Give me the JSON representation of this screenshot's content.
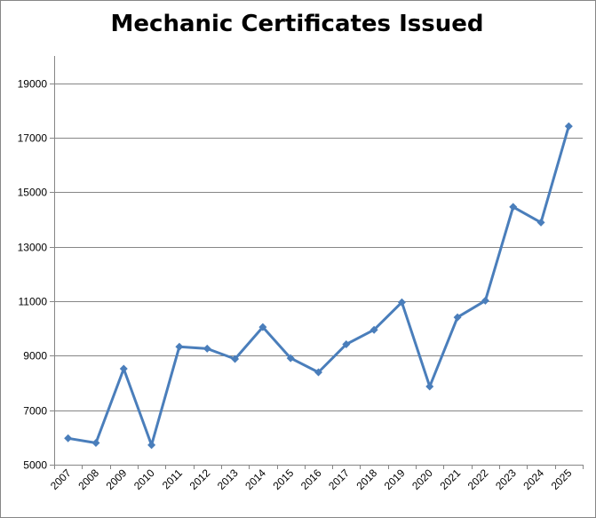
{
  "chart_data": {
    "type": "line",
    "title": "Mechanic Certificates Issued",
    "xlabel": "",
    "ylabel": "",
    "categories": [
      "2007",
      "2008",
      "2009",
      "2010",
      "2011",
      "2012",
      "2013",
      "2014",
      "2015",
      "2016",
      "2017",
      "2018",
      "2019",
      "2020",
      "2021",
      "2022",
      "2023",
      "2024",
      "2025"
    ],
    "series": [
      {
        "values": [
          5970,
          5800,
          8520,
          5720,
          9330,
          9260,
          8880,
          10050,
          8910,
          8390,
          9420,
          9950,
          10960,
          7870,
          10410,
          11020,
          14460,
          13890,
          17420
        ]
      }
    ],
    "ylim": [
      5000,
      20000
    ],
    "yticks": [
      5000,
      7000,
      9000,
      11000,
      13000,
      15000,
      17000,
      19000
    ],
    "grid": "horizontal",
    "legend": "none",
    "colors": {
      "line": "#4a7ebb",
      "grid": "#868686",
      "axis": "#868686"
    },
    "marker": "diamond"
  }
}
